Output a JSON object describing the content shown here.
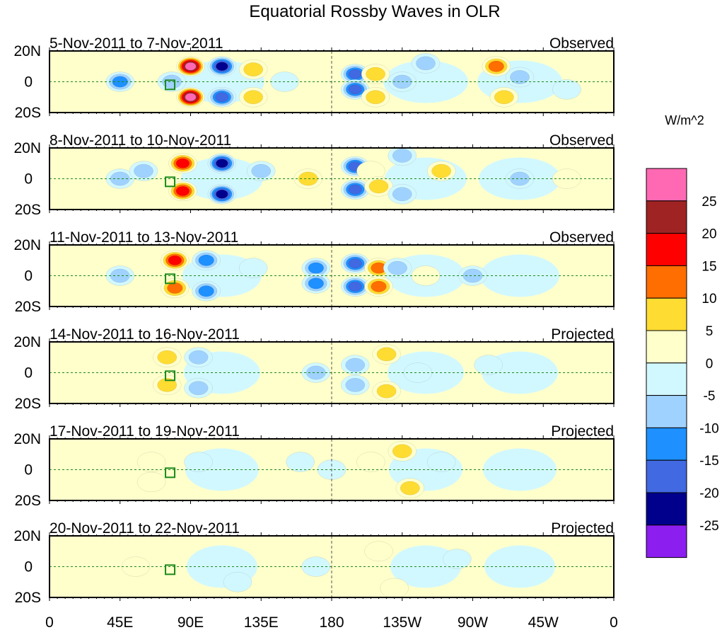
{
  "chart_data": {
    "type": "heatmap",
    "title": "Equatorial Rossby Waves in OLR",
    "units_label": "W/m^2",
    "x_ticks": [
      "0",
      "45E",
      "90E",
      "135E",
      "180",
      "135W",
      "90W",
      "45W",
      "0"
    ],
    "x_tick_lons": [
      0,
      45,
      90,
      135,
      180,
      225,
      270,
      315,
      360
    ],
    "y_ticks": [
      "20N",
      "0",
      "20S"
    ],
    "lon_range": [
      0,
      360
    ],
    "lat_range": [
      -20,
      20
    ],
    "colorbar": {
      "levels": [
        "25",
        "20",
        "15",
        "10",
        "5",
        "0",
        "-5",
        "-10",
        "-15",
        "-20",
        "-25"
      ],
      "colors": [
        "#FF69B4",
        "#A02323",
        "#FF0000",
        "#FF6E00",
        "#FFDC32",
        "#FFFFCC",
        "#D2F8FF",
        "#A0D2FF",
        "#1E90FF",
        "#4169E1",
        "#00008C",
        "#8C1EF0"
      ]
    },
    "panels": [
      {
        "date": "5-Nov-2011 to 7-Nov-2011",
        "kind": "Observed",
        "blobs": [
          [
            90,
            10,
            27
          ],
          [
            90,
            -10,
            27
          ],
          [
            110,
            10,
            -23
          ],
          [
            110,
            -10,
            -18
          ],
          [
            45,
            0,
            -12
          ],
          [
            78,
            0,
            -8
          ],
          [
            130,
            8,
            7
          ],
          [
            130,
            -10,
            7
          ],
          [
            150,
            0,
            -4
          ],
          [
            195,
            5,
            -17
          ],
          [
            195,
            -5,
            -17
          ],
          [
            208,
            5,
            6
          ],
          [
            208,
            -10,
            6
          ],
          [
            225,
            0,
            -6
          ],
          [
            285,
            10,
            12
          ],
          [
            290,
            -10,
            10
          ],
          [
            300,
            3,
            -10
          ],
          [
            240,
            12,
            -6
          ],
          [
            330,
            -5,
            -4
          ]
        ]
      },
      {
        "date": "8-Nov-2011 to 10-Nov-2011",
        "kind": "Observed",
        "blobs": [
          [
            85,
            10,
            20
          ],
          [
            85,
            -8,
            18
          ],
          [
            110,
            10,
            -22
          ],
          [
            110,
            -10,
            -22
          ],
          [
            45,
            0,
            -10
          ],
          [
            60,
            5,
            -6
          ],
          [
            135,
            5,
            -6
          ],
          [
            165,
            0,
            6
          ],
          [
            195,
            8,
            -17
          ],
          [
            195,
            -7,
            -17
          ],
          [
            205,
            5,
            4
          ],
          [
            210,
            -5,
            7
          ],
          [
            225,
            15,
            -10
          ],
          [
            225,
            -10,
            -8
          ],
          [
            250,
            5,
            6
          ],
          [
            300,
            0,
            -6
          ],
          [
            330,
            0,
            4
          ]
        ]
      },
      {
        "date": "11-Nov-2011 to 13-Nov-2011",
        "kind": "Observed",
        "blobs": [
          [
            80,
            10,
            17
          ],
          [
            80,
            -8,
            15
          ],
          [
            100,
            10,
            -13
          ],
          [
            100,
            -10,
            -14
          ],
          [
            45,
            0,
            -6
          ],
          [
            130,
            5,
            -4
          ],
          [
            170,
            5,
            -12
          ],
          [
            170,
            -5,
            -12
          ],
          [
            195,
            8,
            -17
          ],
          [
            195,
            -7,
            -17
          ],
          [
            210,
            5,
            14
          ],
          [
            210,
            -7,
            12
          ],
          [
            222,
            5,
            -8
          ],
          [
            240,
            0,
            4
          ],
          [
            270,
            0,
            -6
          ]
        ]
      },
      {
        "date": "14-Nov-2011 to 16-Nov-2011",
        "kind": "Projected",
        "blobs": [
          [
            75,
            10,
            9
          ],
          [
            75,
            -8,
            9
          ],
          [
            95,
            10,
            -6
          ],
          [
            95,
            -10,
            -6
          ],
          [
            170,
            0,
            -6
          ],
          [
            195,
            5,
            -8
          ],
          [
            195,
            -8,
            -8
          ],
          [
            215,
            12,
            10
          ],
          [
            215,
            -12,
            10
          ],
          [
            235,
            0,
            -4
          ],
          [
            280,
            5,
            -3
          ]
        ]
      },
      {
        "date": "17-Nov-2011 to 19-Nov-2011",
        "kind": "Projected",
        "blobs": [
          [
            65,
            5,
            5
          ],
          [
            65,
            -8,
            5
          ],
          [
            95,
            5,
            -3
          ],
          [
            160,
            5,
            -5
          ],
          [
            180,
            0,
            -4
          ],
          [
            205,
            5,
            3
          ],
          [
            225,
            12,
            6
          ],
          [
            230,
            -12,
            6
          ],
          [
            250,
            5,
            -3
          ]
        ]
      },
      {
        "date": "20-Nov-2011 to 22-Nov-2011",
        "kind": "Projected",
        "blobs": [
          [
            55,
            0,
            3
          ],
          [
            120,
            -10,
            -4
          ],
          [
            170,
            0,
            -4
          ],
          [
            210,
            10,
            4
          ],
          [
            220,
            -14,
            5
          ],
          [
            260,
            5,
            -3
          ]
        ]
      }
    ]
  }
}
